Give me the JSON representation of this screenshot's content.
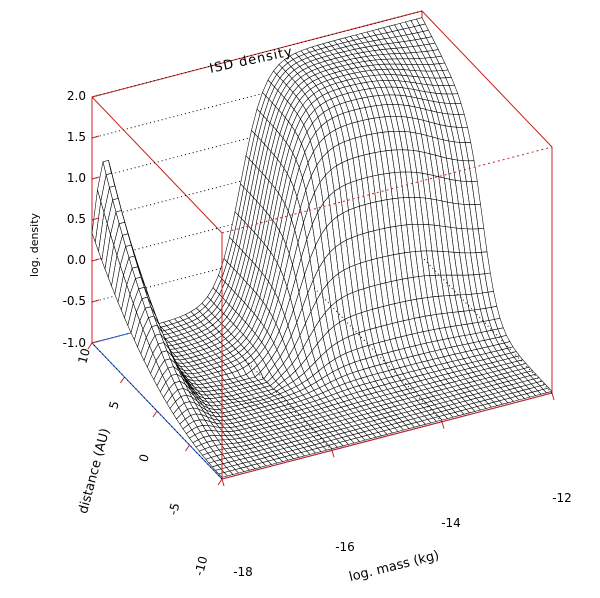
{
  "chart_data": {
    "type": "surface",
    "title": "ISD density",
    "xlabel": "log. mass (kg)",
    "ylabel": "distance (AU)",
    "zlabel": "log. density",
    "x_ticks": [
      "-18",
      "-16",
      "-14",
      "-12"
    ],
    "y_ticks": [
      "-10",
      "-5",
      "0",
      "5",
      "10"
    ],
    "z_ticks": [
      "-1.0",
      "-0.5",
      "0.0",
      "0.5",
      "1.0",
      "1.5",
      "2.0"
    ],
    "xlim": [
      -18,
      -12
    ],
    "ylim": [
      -10,
      10
    ],
    "zlim": [
      -1.0,
      2.0
    ],
    "grid": false,
    "box_color": "#cc2222",
    "base_plane_color": "#2255cc",
    "mesh_color": "#000000",
    "surface_description_points": [
      {
        "x": -18,
        "y": 10,
        "z": 1.2
      },
      {
        "x": -18,
        "y": 5,
        "z": 0.2
      },
      {
        "x": -18,
        "y": 0,
        "z": -1.0
      },
      {
        "x": -18,
        "y": -10,
        "z": -1.0
      },
      {
        "x": -16.3,
        "y": 0,
        "z": -0.3
      },
      {
        "x": -15.2,
        "y": 7,
        "z": 1.6
      },
      {
        "x": -14,
        "y": 10,
        "z": 1.9
      },
      {
        "x": -12.5,
        "y": 10,
        "z": 2.0
      },
      {
        "x": -12,
        "y": 0,
        "z": -0.6
      },
      {
        "x": -12,
        "y": -10,
        "z": -1.0
      }
    ]
  }
}
